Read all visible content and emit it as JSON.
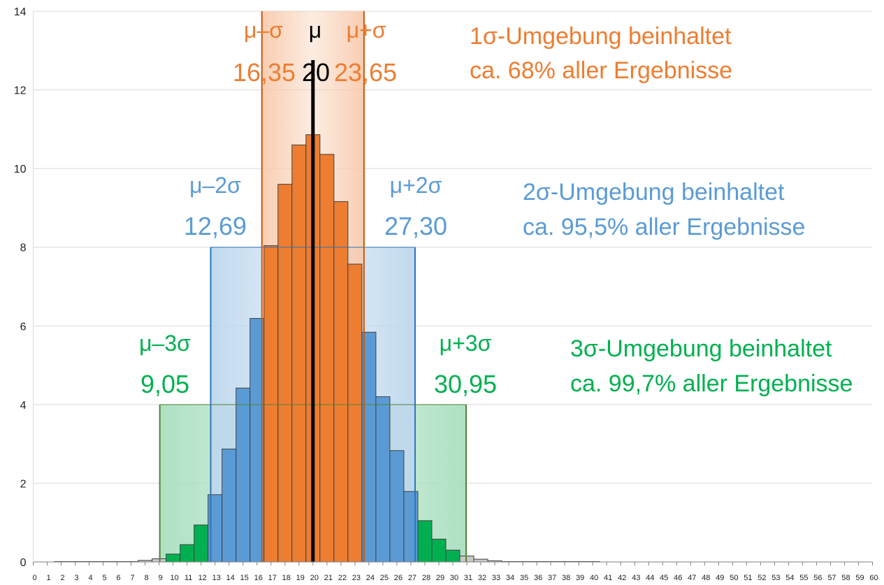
{
  "chart_data": {
    "type": "bar",
    "title": "",
    "xlabel": "",
    "ylabel": "",
    "xlim": [
      0,
      60
    ],
    "ylim": [
      0,
      14
    ],
    "yticks": [
      0,
      2,
      4,
      6,
      8,
      10,
      12,
      14
    ],
    "xticks": [
      0,
      1,
      2,
      3,
      4,
      5,
      6,
      7,
      8,
      9,
      10,
      11,
      12,
      13,
      14,
      15,
      16,
      17,
      18,
      19,
      20,
      21,
      22,
      23,
      24,
      25,
      26,
      27,
      28,
      29,
      30,
      31,
      32,
      33,
      34,
      35,
      36,
      37,
      38,
      39,
      40,
      41,
      42,
      43,
      44,
      45,
      46,
      47,
      48,
      49,
      50,
      51,
      52,
      53,
      54,
      55,
      56,
      57,
      58,
      59,
      60
    ],
    "grid": true,
    "x": [
      0,
      1,
      2,
      3,
      4,
      5,
      6,
      7,
      8,
      9,
      10,
      11,
      12,
      13,
      14,
      15,
      16,
      17,
      18,
      19,
      20,
      21,
      22,
      23,
      24,
      25,
      26,
      27,
      28,
      29,
      30,
      31,
      32,
      33,
      34,
      35,
      36,
      37,
      38,
      39,
      40,
      41,
      42,
      43,
      44,
      45,
      46,
      47,
      48,
      49,
      50,
      51,
      52,
      53,
      54,
      55,
      56,
      57,
      58,
      59,
      60
    ],
    "values": [
      0,
      0,
      0.01,
      0.01,
      0.01,
      0.01,
      0.01,
      0.01,
      0.04,
      0.08,
      0.2,
      0.44,
      0.94,
      1.71,
      2.87,
      4.42,
      6.19,
      8.04,
      9.6,
      10.6,
      10.86,
      10.36,
      9.16,
      7.57,
      5.84,
      4.2,
      2.83,
      1.79,
      1.05,
      0.58,
      0.3,
      0.15,
      0.07,
      0.03,
      0.01,
      0.01,
      0.01,
      0.01,
      0.01,
      0.01,
      0.01,
      0,
      0,
      0,
      0,
      0,
      0,
      0,
      0,
      0,
      0,
      0,
      0,
      0,
      0,
      0,
      0,
      0,
      0,
      0,
      0
    ],
    "colors": {
      "gray": "#c8c8c8",
      "green": "#00b050",
      "blue": "#5b9bd5",
      "orange": "#ed7d31",
      "mean_line": "#000000",
      "green_band": "#a9dfbf",
      "blue_band": "#bdd7ee",
      "orange_band": "#f8cbad"
    },
    "mu": 20,
    "intervals": [
      {
        "k": 1,
        "lower": 16.35,
        "upper": 23.65,
        "height": 14,
        "color": "#ed7d31",
        "lower_sym": "μ–σ",
        "upper_sym": "μ+σ",
        "lower_value": "16,35",
        "upper_value": "23,65",
        "caption_line1": "1σ-Umgebung beinhaltet",
        "caption_line2": "ca. 68% aller Ergebnisse"
      },
      {
        "k": 2,
        "lower": 12.69,
        "upper": 27.3,
        "height": 8,
        "color": "#5b9bd5",
        "lower_sym": "μ–2σ",
        "upper_sym": "μ+2σ",
        "lower_value": "12,69",
        "upper_value": "27,30",
        "caption_line1": "2σ-Umgebung beinhaltet",
        "caption_line2": "ca. 95,5% aller Ergebnisse"
      },
      {
        "k": 3,
        "lower": 9.05,
        "upper": 30.95,
        "height": 4,
        "color": "#00b050",
        "lower_sym": "μ–3σ",
        "upper_sym": "μ+3σ",
        "lower_value": "9,05",
        "upper_value": "30,95",
        "caption_line1": "3σ-Umgebung beinhaltet",
        "caption_line2": "ca. 99,7% aller Ergebnisse"
      }
    ],
    "mu_label": "μ",
    "mu_value": "20"
  }
}
